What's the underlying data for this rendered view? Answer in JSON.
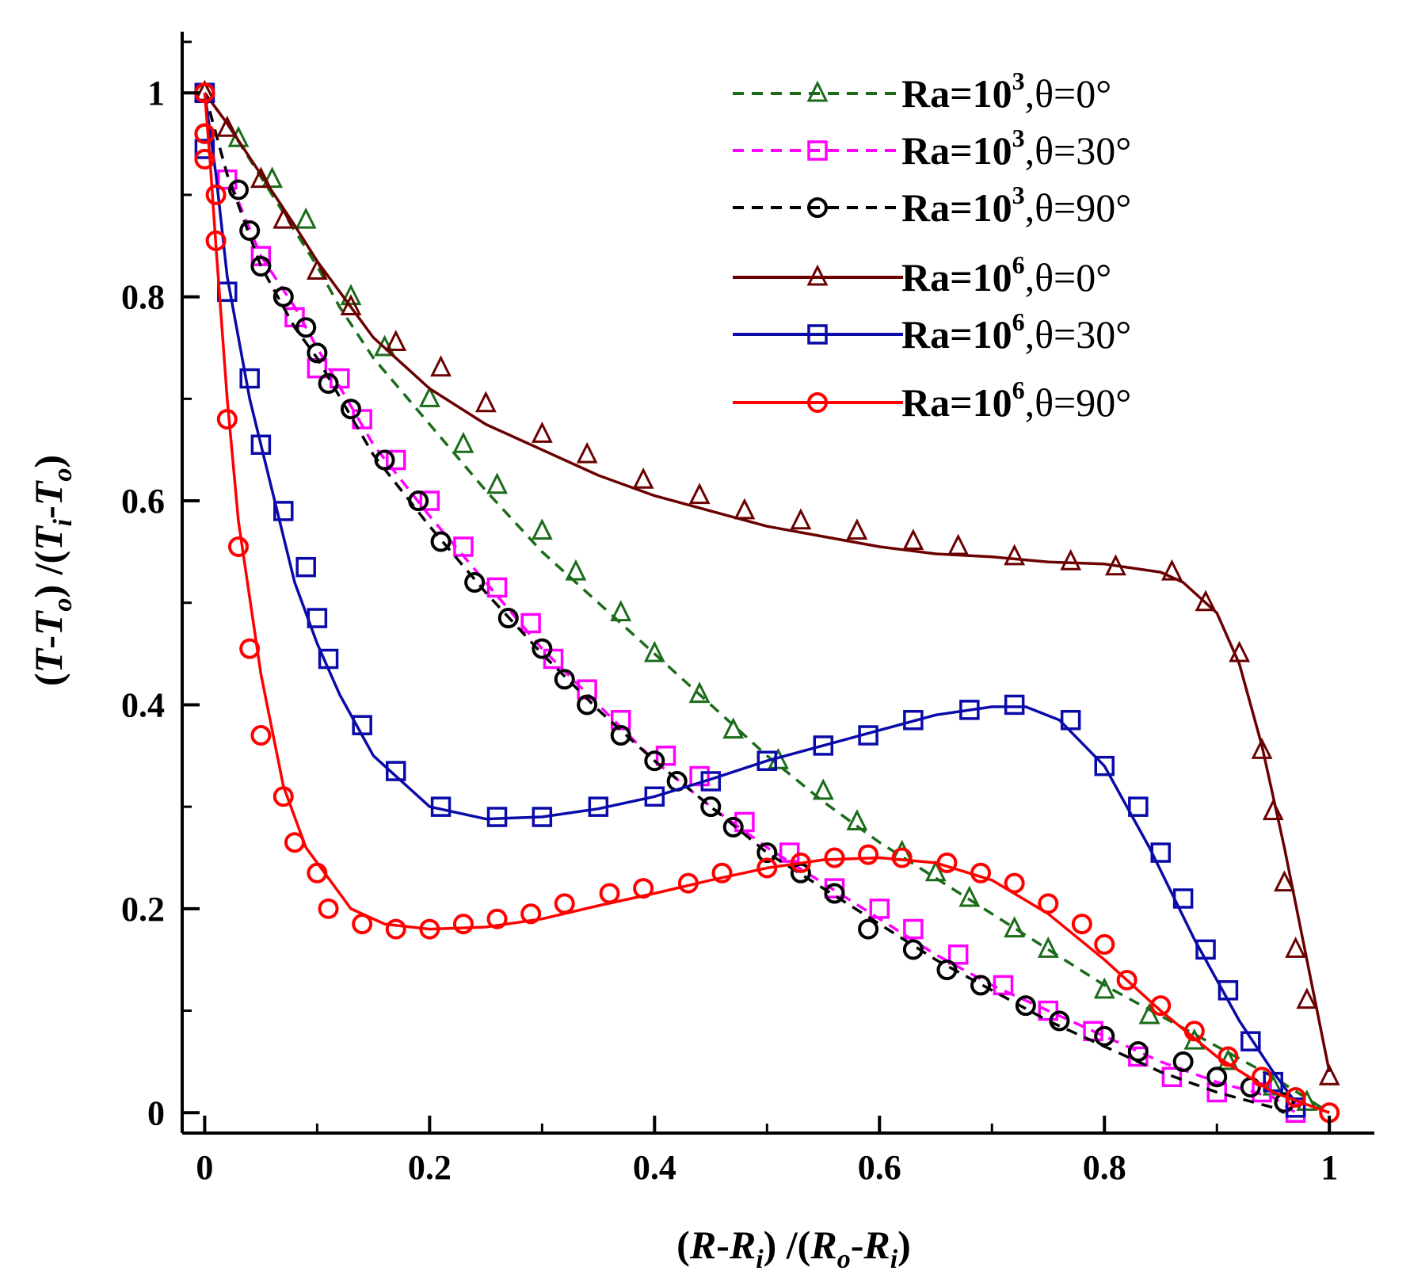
{
  "chart_data": {
    "type": "line",
    "xlabel": {
      "open1": "(",
      "v1": "R",
      "d1": "-",
      "v2": "R",
      "s2": "i",
      "mid": ") /(",
      "v3": "R",
      "s3": "o",
      "d2": "-",
      "v4": "R",
      "s4": "i",
      "close": ")"
    },
    "ylabel": {
      "open1": "(",
      "v1": "T",
      "d1": "-",
      "v2": "T",
      "s2": "o",
      "mid": ") /(",
      "v3": "T",
      "s3": "i",
      "d2": "-",
      "v4": "T",
      "s4": "o",
      "close": ")"
    },
    "xlim": [
      -0.02,
      1.04
    ],
    "ylim": [
      -0.02,
      1.06
    ],
    "x_ticks": [
      {
        "value": 0,
        "label": "0"
      },
      {
        "value": 0.2,
        "label": "0.2"
      },
      {
        "value": 0.4,
        "label": "0.4"
      },
      {
        "value": 0.6,
        "label": "0.6"
      },
      {
        "value": 0.8,
        "label": "0.8"
      },
      {
        "value": 1,
        "label": "1"
      }
    ],
    "y_ticks": [
      {
        "value": 0,
        "label": "0"
      },
      {
        "value": 0.2,
        "label": "0.2"
      },
      {
        "value": 0.4,
        "label": "0.4"
      },
      {
        "value": 0.6,
        "label": "0.6"
      },
      {
        "value": 0.8,
        "label": "0.8"
      },
      {
        "value": 1,
        "label": "1"
      }
    ],
    "grid": false,
    "legend_position": "top-right",
    "series": [
      {
        "name": "Ra=10^3,θ=0°",
        "ra_base": "Ra=10",
        "ra_exp": "3",
        "angle": ",θ=0°",
        "color": "#1a6b1a",
        "line_style": "dashed",
        "marker": "triangle",
        "x": [
          0,
          0.02,
          0.04,
          0.06,
          0.08,
          0.1,
          0.12,
          0.15,
          0.2,
          0.25,
          0.3,
          0.35,
          0.4,
          0.45,
          0.5,
          0.55,
          0.6,
          0.65,
          0.7,
          0.75,
          0.8,
          0.85,
          0.9,
          0.95,
          1.0
        ],
        "y": [
          1.0,
          0.97,
          0.935,
          0.9,
          0.865,
          0.83,
          0.79,
          0.74,
          0.675,
          0.61,
          0.55,
          0.5,
          0.45,
          0.4,
          0.35,
          0.305,
          0.265,
          0.23,
          0.195,
          0.16,
          0.125,
          0.095,
          0.065,
          0.035,
          0.0
        ],
        "marker_x": [
          0,
          0.03,
          0.06,
          0.09,
          0.13,
          0.16,
          0.2,
          0.23,
          0.26,
          0.3,
          0.33,
          0.37,
          0.4,
          0.44,
          0.47,
          0.51,
          0.55,
          0.58,
          0.62,
          0.65,
          0.68,
          0.72,
          0.75,
          0.8,
          0.84,
          0.88,
          0.91,
          0.95,
          0.98
        ],
        "marker_y": [
          1.0,
          0.955,
          0.915,
          0.875,
          0.8,
          0.75,
          0.7,
          0.655,
          0.615,
          0.57,
          0.53,
          0.49,
          0.45,
          0.41,
          0.375,
          0.345,
          0.315,
          0.285,
          0.255,
          0.235,
          0.21,
          0.18,
          0.16,
          0.12,
          0.095,
          0.07,
          0.05,
          0.025,
          0.01
        ]
      },
      {
        "name": "Ra=10^3,θ=30°",
        "ra_base": "Ra=10",
        "ra_exp": "3",
        "angle": ",θ=30°",
        "color": "#ff00ff",
        "line_style": "dashed",
        "marker": "square",
        "x": [
          0,
          0.02,
          0.05,
          0.08,
          0.1,
          0.15,
          0.2,
          0.25,
          0.3,
          0.35,
          0.4,
          0.45,
          0.5,
          0.55,
          0.6,
          0.65,
          0.7,
          0.75,
          0.8,
          0.85,
          0.9,
          0.95,
          0.97
        ],
        "y": [
          1.0,
          0.92,
          0.84,
          0.79,
          0.75,
          0.655,
          0.585,
          0.52,
          0.455,
          0.4,
          0.345,
          0.3,
          0.26,
          0.225,
          0.19,
          0.155,
          0.125,
          0.1,
          0.075,
          0.05,
          0.03,
          0.015,
          0.0
        ],
        "marker_x": [
          0,
          0.02,
          0.05,
          0.08,
          0.1,
          0.12,
          0.14,
          0.17,
          0.2,
          0.23,
          0.26,
          0.29,
          0.31,
          0.34,
          0.37,
          0.41,
          0.44,
          0.48,
          0.52,
          0.56,
          0.6,
          0.63,
          0.67,
          0.71,
          0.75,
          0.79,
          0.83,
          0.86,
          0.9,
          0.94,
          0.97
        ],
        "marker_y": [
          1.0,
          0.915,
          0.84,
          0.78,
          0.73,
          0.72,
          0.68,
          0.64,
          0.6,
          0.555,
          0.515,
          0.48,
          0.445,
          0.415,
          0.385,
          0.35,
          0.33,
          0.285,
          0.255,
          0.22,
          0.2,
          0.18,
          0.155,
          0.125,
          0.1,
          0.08,
          0.055,
          0.035,
          0.02,
          0.02,
          0.0
        ]
      },
      {
        "name": "Ra=10^3,θ=90°",
        "ra_base": "Ra=10",
        "ra_exp": "3",
        "angle": ",θ=90°",
        "color": "#000000",
        "line_style": "dashed",
        "marker": "circle",
        "x": [
          0,
          0.02,
          0.05,
          0.08,
          0.1,
          0.15,
          0.2,
          0.25,
          0.3,
          0.35,
          0.4,
          0.45,
          0.5,
          0.55,
          0.6,
          0.65,
          0.7,
          0.75,
          0.8,
          0.85,
          0.9,
          0.95,
          0.96
        ],
        "y": [
          1.0,
          0.92,
          0.83,
          0.77,
          0.74,
          0.645,
          0.575,
          0.51,
          0.45,
          0.395,
          0.345,
          0.3,
          0.255,
          0.22,
          0.185,
          0.15,
          0.12,
          0.09,
          0.065,
          0.04,
          0.02,
          0.005,
          0.0
        ],
        "marker_x": [
          0,
          0.0,
          0.03,
          0.04,
          0.05,
          0.07,
          0.09,
          0.1,
          0.11,
          0.13,
          0.16,
          0.19,
          0.21,
          0.24,
          0.27,
          0.3,
          0.32,
          0.34,
          0.37,
          0.4,
          0.42,
          0.45,
          0.47,
          0.5,
          0.53,
          0.56,
          0.59,
          0.63,
          0.66,
          0.69,
          0.73,
          0.76,
          0.8,
          0.83,
          0.87,
          0.9,
          0.93,
          0.96
        ],
        "marker_y": [
          1.0,
          0.96,
          0.905,
          0.865,
          0.83,
          0.8,
          0.77,
          0.745,
          0.715,
          0.69,
          0.64,
          0.6,
          0.56,
          0.52,
          0.485,
          0.455,
          0.425,
          0.4,
          0.37,
          0.345,
          0.325,
          0.3,
          0.28,
          0.255,
          0.235,
          0.215,
          0.18,
          0.16,
          0.14,
          0.125,
          0.105,
          0.09,
          0.075,
          0.06,
          0.05,
          0.035,
          0.025,
          0.01
        ]
      },
      {
        "name": "Ra=10^6,θ=0°",
        "ra_base": "Ra=10",
        "ra_exp": "6",
        "angle": ",θ=0°",
        "color": "#6b0000",
        "line_style": "solid",
        "marker": "triangle",
        "x": [
          0,
          0.02,
          0.05,
          0.08,
          0.1,
          0.15,
          0.2,
          0.25,
          0.3,
          0.35,
          0.4,
          0.45,
          0.5,
          0.55,
          0.6,
          0.65,
          0.7,
          0.75,
          0.8,
          0.85,
          0.87,
          0.9,
          0.92,
          0.94,
          0.96,
          0.98,
          1.0
        ],
        "y": [
          1.0,
          0.97,
          0.92,
          0.87,
          0.835,
          0.76,
          0.71,
          0.675,
          0.65,
          0.625,
          0.605,
          0.59,
          0.575,
          0.565,
          0.555,
          0.548,
          0.545,
          0.54,
          0.538,
          0.53,
          0.52,
          0.49,
          0.44,
          0.36,
          0.26,
          0.15,
          0.04
        ],
        "marker_x": [
          0,
          0.02,
          0.05,
          0.07,
          0.1,
          0.13,
          0.17,
          0.21,
          0.25,
          0.3,
          0.34,
          0.39,
          0.44,
          0.48,
          0.53,
          0.58,
          0.63,
          0.67,
          0.72,
          0.77,
          0.81,
          0.86,
          0.89,
          0.92,
          0.94,
          0.95,
          0.96,
          0.97,
          0.98,
          1.0
        ],
        "marker_y": [
          1.0,
          0.965,
          0.915,
          0.875,
          0.825,
          0.79,
          0.755,
          0.73,
          0.695,
          0.665,
          0.645,
          0.62,
          0.605,
          0.59,
          0.58,
          0.57,
          0.56,
          0.555,
          0.545,
          0.54,
          0.535,
          0.53,
          0.5,
          0.45,
          0.355,
          0.295,
          0.225,
          0.16,
          0.11,
          0.035
        ]
      },
      {
        "name": "Ra=10^6,θ=30°",
        "ra_base": "Ra=10",
        "ra_exp": "6",
        "angle": ",θ=30°",
        "color": "#0a0aa8",
        "line_style": "solid",
        "marker": "square",
        "x": [
          0,
          0.01,
          0.02,
          0.04,
          0.06,
          0.08,
          0.1,
          0.12,
          0.15,
          0.2,
          0.25,
          0.3,
          0.35,
          0.4,
          0.45,
          0.5,
          0.55,
          0.6,
          0.65,
          0.7,
          0.73,
          0.76,
          0.8,
          0.84,
          0.88,
          0.92,
          0.95,
          0.97
        ],
        "y": [
          1.0,
          0.92,
          0.82,
          0.7,
          0.61,
          0.52,
          0.46,
          0.41,
          0.35,
          0.3,
          0.288,
          0.29,
          0.298,
          0.31,
          0.327,
          0.345,
          0.36,
          0.375,
          0.39,
          0.398,
          0.398,
          0.385,
          0.34,
          0.26,
          0.17,
          0.09,
          0.04,
          0.01
        ],
        "marker_x": [
          0,
          0.0,
          0.02,
          0.04,
          0.05,
          0.07,
          0.09,
          0.1,
          0.11,
          0.14,
          0.17,
          0.21,
          0.26,
          0.3,
          0.35,
          0.4,
          0.45,
          0.5,
          0.55,
          0.59,
          0.63,
          0.68,
          0.72,
          0.77,
          0.8,
          0.83,
          0.85,
          0.87,
          0.89,
          0.91,
          0.93,
          0.95,
          0.97
        ],
        "marker_y": [
          1.0,
          0.945,
          0.805,
          0.72,
          0.655,
          0.59,
          0.535,
          0.485,
          0.445,
          0.38,
          0.335,
          0.3,
          0.29,
          0.29,
          0.3,
          0.31,
          0.325,
          0.345,
          0.36,
          0.37,
          0.385,
          0.395,
          0.4,
          0.385,
          0.34,
          0.3,
          0.255,
          0.21,
          0.16,
          0.12,
          0.07,
          0.03,
          0.005
        ]
      },
      {
        "name": "Ra=10^6,θ=90°",
        "ra_base": "Ra=10",
        "ra_exp": "6",
        "angle": ",θ=90°",
        "color": "#ff0000",
        "line_style": "solid",
        "marker": "circle",
        "x": [
          0,
          0.005,
          0.01,
          0.02,
          0.03,
          0.05,
          0.07,
          0.09,
          0.11,
          0.13,
          0.16,
          0.2,
          0.25,
          0.3,
          0.35,
          0.4,
          0.45,
          0.5,
          0.55,
          0.6,
          0.65,
          0.7,
          0.75,
          0.8,
          0.85,
          0.9,
          0.95,
          1.0
        ],
        "y": [
          1.0,
          0.93,
          0.85,
          0.7,
          0.58,
          0.43,
          0.32,
          0.26,
          0.23,
          0.2,
          0.185,
          0.18,
          0.182,
          0.19,
          0.203,
          0.215,
          0.228,
          0.24,
          0.248,
          0.25,
          0.245,
          0.228,
          0.195,
          0.15,
          0.1,
          0.055,
          0.02,
          0.0
        ],
        "marker_x": [
          0,
          0.0,
          0.0,
          0.01,
          0.01,
          0.02,
          0.03,
          0.04,
          0.05,
          0.07,
          0.08,
          0.1,
          0.11,
          0.14,
          0.17,
          0.2,
          0.23,
          0.26,
          0.29,
          0.32,
          0.36,
          0.39,
          0.43,
          0.46,
          0.5,
          0.53,
          0.56,
          0.59,
          0.62,
          0.66,
          0.69,
          0.72,
          0.75,
          0.78,
          0.8,
          0.82,
          0.85,
          0.88,
          0.91,
          0.94,
          0.97,
          1.0
        ],
        "marker_y": [
          1.0,
          0.96,
          0.935,
          0.9,
          0.855,
          0.68,
          0.555,
          0.455,
          0.37,
          0.31,
          0.265,
          0.235,
          0.2,
          0.185,
          0.18,
          0.18,
          0.185,
          0.19,
          0.195,
          0.205,
          0.215,
          0.22,
          0.225,
          0.235,
          0.24,
          0.245,
          0.25,
          0.253,
          0.25,
          0.245,
          0.235,
          0.225,
          0.205,
          0.185,
          0.165,
          0.13,
          0.105,
          0.08,
          0.055,
          0.035,
          0.015,
          0.0
        ]
      }
    ]
  }
}
